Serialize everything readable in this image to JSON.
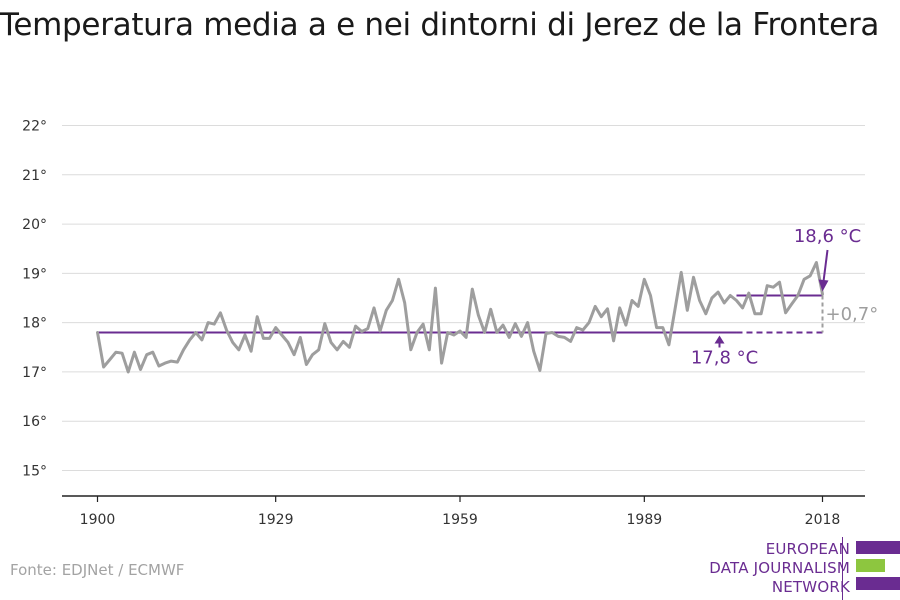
{
  "title": "Temperatura media a e nei dintorni di Jerez de la Frontera",
  "source": "Fonte: EDJNet / ECMWF",
  "logo": {
    "lines": [
      "EUROPEAN",
      "DATA JOURNALISM",
      "NETWORK"
    ],
    "colors": {
      "purple": "#6a2c91",
      "green": "#8dc63f"
    }
  },
  "colors": {
    "series": "#9e9e9e",
    "baseline": "#6a2c91",
    "grid": "#dcdcdc",
    "axis": "#222222"
  },
  "chart_data": {
    "type": "line",
    "ylim": [
      15,
      22
    ],
    "yticks": [
      15,
      16,
      17,
      18,
      19,
      20,
      21,
      22
    ],
    "ytick_suffix": "°",
    "xlim": [
      1900,
      2018
    ],
    "xticks": [
      1900,
      1929,
      1959,
      1989,
      2018
    ],
    "grid": true,
    "series": [
      {
        "x": [
          1900,
          1901,
          1902,
          1903,
          1904,
          1905,
          1906,
          1907,
          1908,
          1909,
          1910,
          1911,
          1912,
          1913,
          1914,
          1915,
          1916,
          1917,
          1918,
          1919,
          1920,
          1921,
          1922,
          1923,
          1924,
          1925,
          1926,
          1927,
          1928,
          1929,
          1930,
          1931,
          1932,
          1933,
          1934,
          1935,
          1936,
          1937,
          1938,
          1939,
          1940,
          1941,
          1942,
          1943,
          1944,
          1945,
          1946,
          1947,
          1948,
          1949,
          1950,
          1951,
          1952,
          1953,
          1954,
          1955,
          1956,
          1957,
          1958,
          1959,
          1960,
          1961,
          1962,
          1963,
          1964,
          1965,
          1966,
          1967,
          1968,
          1969,
          1970,
          1971,
          1972,
          1973,
          1974,
          1975,
          1976,
          1977,
          1978,
          1979,
          1980,
          1981,
          1982,
          1983,
          1984,
          1985,
          1986,
          1987,
          1988,
          1989,
          1990,
          1991,
          1992,
          1993,
          1994,
          1995,
          1996,
          1997,
          1998,
          1999,
          2000,
          2001,
          2002,
          2003,
          2004,
          2005,
          2006,
          2007,
          2008,
          2009,
          2010,
          2011,
          2012,
          2013,
          2014,
          2015,
          2016,
          2017,
          2018
        ],
        "values": [
          17.8,
          17.1,
          17.25,
          17.4,
          17.38,
          17.0,
          17.4,
          17.05,
          17.35,
          17.4,
          17.12,
          17.18,
          17.22,
          17.2,
          17.45,
          17.65,
          17.8,
          17.65,
          18.0,
          17.97,
          18.2,
          17.85,
          17.6,
          17.45,
          17.75,
          17.42,
          18.12,
          17.68,
          17.68,
          17.9,
          17.75,
          17.6,
          17.35,
          17.7,
          17.15,
          17.35,
          17.45,
          17.98,
          17.6,
          17.45,
          17.62,
          17.5,
          17.93,
          17.82,
          17.88,
          18.3,
          17.83,
          18.25,
          18.45,
          18.88,
          18.4,
          17.45,
          17.8,
          17.97,
          17.45,
          18.7,
          17.18,
          17.8,
          17.75,
          17.83,
          17.7,
          18.68,
          18.15,
          17.8,
          18.27,
          17.8,
          17.95,
          17.7,
          17.98,
          17.72,
          18.0,
          17.42,
          17.03,
          17.78,
          17.8,
          17.72,
          17.7,
          17.62,
          17.9,
          17.85,
          18.0,
          18.33,
          18.12,
          18.28,
          17.63,
          18.3,
          17.95,
          18.45,
          18.33,
          18.88,
          18.55,
          17.9,
          17.9,
          17.55,
          18.27,
          19.02,
          18.25,
          18.92,
          18.45,
          18.18,
          18.5,
          18.62,
          18.4,
          18.55,
          18.45,
          18.3,
          18.6,
          18.18,
          18.18,
          18.75,
          18.72,
          18.82,
          18.2,
          18.38,
          18.55,
          18.88,
          18.95,
          19.22,
          18.58
        ]
      }
    ],
    "baseline": {
      "value": 17.8,
      "label": "17,8 °C",
      "from": 1900,
      "to": 2018,
      "solid_until": 2004
    },
    "recent": {
      "value": 18.55,
      "label": "18,6 °C",
      "from": 2004,
      "to": 2018
    },
    "difference": {
      "label": "+0,7°"
    }
  }
}
